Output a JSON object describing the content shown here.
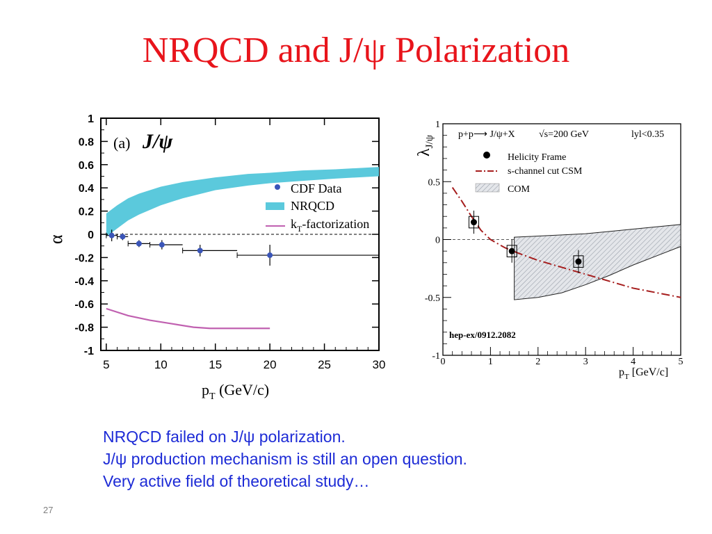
{
  "slide": {
    "title": "NRQCD and J/ψ Polarization",
    "notes": [
      "NRQCD  failed on J/ψ polarization.",
      "J/ψ production mechanism  is still an open question.",
      "Very active field of theoretical study…"
    ],
    "slide_number": "27"
  },
  "colors": {
    "title": "#e8141b",
    "notes": "#1d2bd6",
    "nrqcd_band": "#5bc9dc",
    "kt_line": "#c060b0",
    "cdf_points": "#3a55b8",
    "csm_line": "#a61d1d",
    "com_band": "#c8ccd2"
  },
  "chart_data": [
    {
      "type": "scatter",
      "panel_label": "(a)",
      "panel_title": "J/ψ",
      "xlabel": "p",
      "xlabel_sub": "T",
      "xlabel_unit": " (GeV/c)",
      "ylabel": "α",
      "xlim": [
        4.5,
        30
      ],
      "ylim": [
        -1,
        1
      ],
      "xticks": [
        5,
        10,
        15,
        20,
        25,
        30
      ],
      "yticks": [
        1,
        0.8,
        0.6,
        0.4,
        0.2,
        0,
        -0.2,
        -0.4,
        -0.6,
        -0.8,
        -1
      ],
      "ytick_labels": [
        "1",
        "0.8",
        "0.6",
        "0.4",
        "0.2",
        "0",
        "-0.2",
        "-0.4",
        "-0.6",
        "-0.8",
        "-1"
      ],
      "legend": [
        {
          "label": "CDF Data",
          "kind": "point"
        },
        {
          "label": "NRQCD",
          "kind": "band"
        },
        {
          "label": "k",
          "label_sub": "T",
          "label_rest": "-factorization",
          "kind": "line"
        }
      ],
      "cdf_data": {
        "name": "CDF Data",
        "points": [
          {
            "x": 5.5,
            "xlo": 5,
            "xhi": 6,
            "y": -0.01,
            "err": 0.05
          },
          {
            "x": 6.5,
            "xlo": 6,
            "xhi": 7,
            "y": -0.02,
            "err": 0.03
          },
          {
            "x": 8.0,
            "xlo": 7,
            "xhi": 9,
            "y": -0.08,
            "err": 0.03
          },
          {
            "x": 10.1,
            "xlo": 9,
            "xhi": 12,
            "y": -0.09,
            "err": 0.04
          },
          {
            "x": 13.6,
            "xlo": 12,
            "xhi": 17,
            "y": -0.14,
            "err": 0.05
          },
          {
            "x": 20.0,
            "xlo": 17,
            "xhi": 30,
            "y": -0.18,
            "err": 0.09
          }
        ]
      },
      "nrqcd_band": {
        "name": "NRQCD",
        "x": [
          5,
          6,
          7,
          8,
          10,
          12,
          15,
          18,
          20,
          23,
          26,
          30
        ],
        "lo": [
          -0.02,
          0.05,
          0.12,
          0.17,
          0.25,
          0.31,
          0.38,
          0.42,
          0.44,
          0.46,
          0.48,
          0.5
        ],
        "hi": [
          0.18,
          0.25,
          0.31,
          0.35,
          0.41,
          0.45,
          0.49,
          0.52,
          0.53,
          0.55,
          0.56,
          0.58
        ]
      },
      "kt_line": {
        "name": "kT-factorization",
        "x": [
          5,
          7,
          9,
          11,
          13,
          14.5,
          17,
          20
        ],
        "y": [
          -0.64,
          -0.7,
          -0.74,
          -0.77,
          -0.8,
          -0.81,
          -0.81,
          -0.81
        ]
      }
    },
    {
      "type": "scatter",
      "header": [
        "p+p⟶ J/ψ+X",
        "√s=200 GeV",
        "lyl<0.35"
      ],
      "xlabel": "p",
      "xlabel_sub": "T",
      "xlabel_unit": "  [GeV/c]",
      "ylabel": "λ",
      "ylabel_sub": "J/ψ",
      "xlim": [
        0,
        5
      ],
      "ylim": [
        -1,
        1
      ],
      "xticks": [
        0,
        1,
        2,
        3,
        4,
        5
      ],
      "yticks": [
        1,
        0.5,
        0,
        -0.5,
        -1
      ],
      "ytick_labels": [
        "1",
        "0.5",
        "0",
        "-0.5",
        "-1"
      ],
      "legend": [
        {
          "label": "Helicity Frame",
          "kind": "point"
        },
        {
          "label": "s-channel cut CSM",
          "kind": "dashdot"
        },
        {
          "label": "COM",
          "kind": "band"
        }
      ],
      "reference": "hep-ex/0912.2082",
      "data": {
        "name": "Helicity Frame",
        "points": [
          {
            "x": 0.65,
            "y": 0.15,
            "err": 0.1,
            "sys": 0.05
          },
          {
            "x": 1.45,
            "y": -0.1,
            "err": 0.1,
            "sys": 0.05
          },
          {
            "x": 2.85,
            "y": -0.19,
            "err": 0.1,
            "sys": 0.05
          }
        ]
      },
      "csm_line": {
        "name": "s-channel cut CSM",
        "x": [
          0.2,
          0.4,
          0.6,
          0.8,
          1.0,
          1.3,
          1.6,
          2.0,
          2.5,
          3.0,
          3.5,
          4.0,
          4.5,
          5.0
        ],
        "y": [
          0.45,
          0.33,
          0.2,
          0.08,
          0.0,
          -0.07,
          -0.12,
          -0.18,
          -0.24,
          -0.3,
          -0.36,
          -0.42,
          -0.46,
          -0.5
        ]
      },
      "com_band": {
        "name": "COM",
        "x": [
          1.5,
          2.0,
          2.5,
          3.0,
          3.5,
          4.0,
          4.5,
          5.0
        ],
        "hi": [
          0.02,
          0.03,
          0.04,
          0.05,
          0.07,
          0.09,
          0.11,
          0.13
        ],
        "lo": [
          -0.52,
          -0.5,
          -0.46,
          -0.39,
          -0.31,
          -0.22,
          -0.14,
          -0.06
        ]
      }
    }
  ]
}
